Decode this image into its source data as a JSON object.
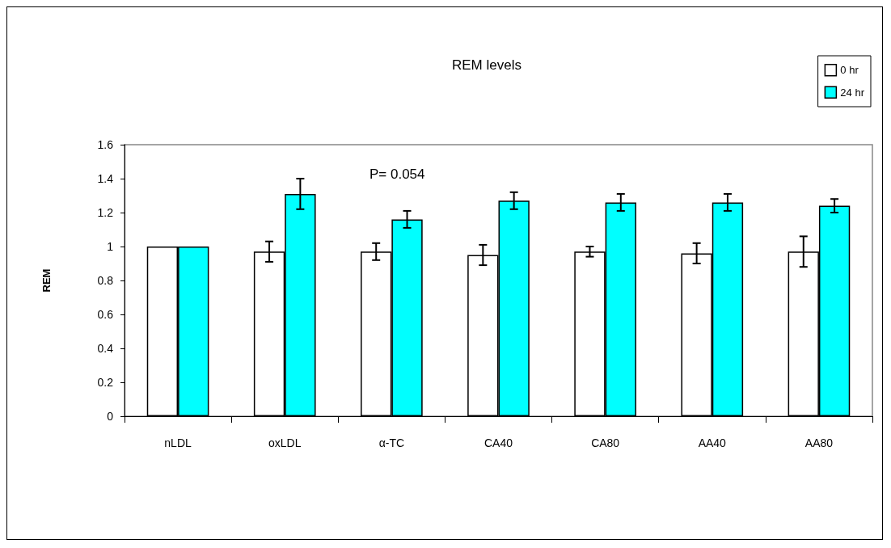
{
  "chart_data": {
    "type": "bar",
    "title": "REM levels",
    "ylabel": "REM",
    "categories": [
      "nLDL",
      "oxLDL",
      "α-TC",
      "CA40",
      "CA80",
      "AA40",
      "AA80"
    ],
    "series": [
      {
        "name": "0 hr",
        "color": "#ffffff",
        "values": [
          1,
          0.97,
          0.97,
          0.95,
          0.97,
          0.96,
          0.97
        ],
        "errors": [
          null,
          0.06,
          0.05,
          0.06,
          0.03,
          0.06,
          0.09
        ]
      },
      {
        "name": "24 hr",
        "color": "#00ffff",
        "values": [
          1,
          1.31,
          1.16,
          1.27,
          1.26,
          1.26,
          1.24
        ],
        "errors": [
          null,
          0.09,
          0.05,
          0.05,
          0.05,
          0.05,
          0.04
        ]
      }
    ],
    "ylim": [
      0,
      1.6
    ],
    "yticks": [
      0,
      0.2,
      0.4,
      0.6,
      0.8,
      1,
      1.2,
      1.4,
      1.6
    ],
    "grid": false,
    "legend": "top right",
    "annotations": [
      "P= 0.054"
    ]
  }
}
